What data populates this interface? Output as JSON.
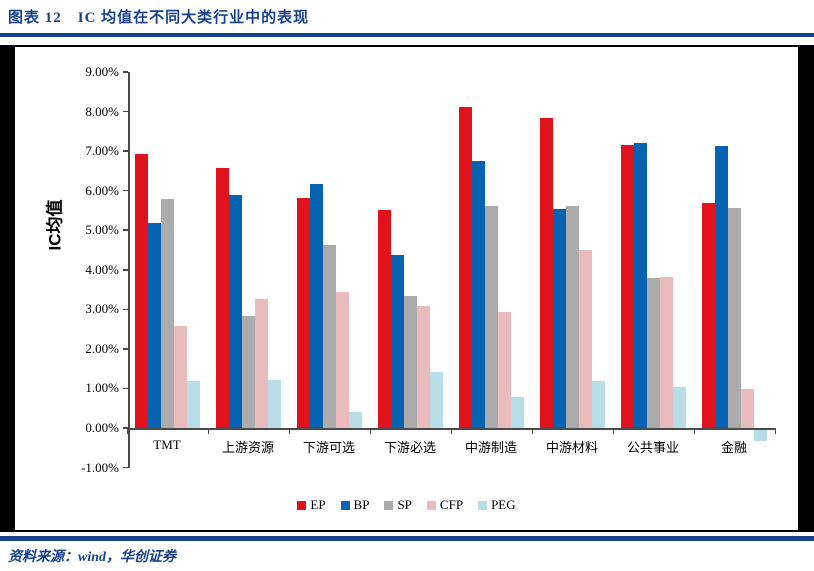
{
  "title": "图表 12　IC 均值在不同大类行业中的表现",
  "source": "资料来源：wind，华创证券",
  "colors": {
    "accent_navy": "#17418F",
    "frame_black": "#000000",
    "axis_gray": "#4a4a4a",
    "ep_red": "#E0131C",
    "bp_blue": "#0663B2",
    "sp_gray": "#ACACAC",
    "cfp_pink": "#EABBBD",
    "peg_lightblue": "#B7DEE8"
  },
  "chart_data": {
    "type": "bar",
    "title": "",
    "xlabel": "",
    "ylabel": "IC均值",
    "ylim": [
      -1,
      9
    ],
    "ytick_step": 1,
    "ytick_format": "0.00%",
    "grid": false,
    "legend_position": "bottom",
    "categories": [
      "TMT",
      "上游资源",
      "下游可选",
      "下游必选",
      "中游制造",
      "中游材料",
      "公共事业",
      "金融"
    ],
    "series": [
      {
        "name": "EP",
        "color": "#E0131C",
        "values": [
          6.93,
          6.58,
          5.81,
          5.5,
          8.11,
          7.84,
          7.15,
          5.7
        ]
      },
      {
        "name": "BP",
        "color": "#0663B2",
        "values": [
          5.18,
          5.9,
          6.17,
          4.38,
          6.74,
          5.53,
          7.21,
          7.12
        ]
      },
      {
        "name": "SP",
        "color": "#ACACAC",
        "values": [
          5.78,
          2.84,
          4.63,
          3.33,
          5.6,
          5.61,
          3.8,
          5.55
        ]
      },
      {
        "name": "CFP",
        "color": "#EABBBD",
        "values": [
          2.57,
          3.26,
          3.45,
          3.09,
          2.94,
          4.5,
          3.81,
          0.98
        ]
      },
      {
        "name": "PEG",
        "color": "#B7DEE8",
        "values": [
          1.19,
          1.21,
          0.4,
          1.41,
          0.78,
          1.19,
          1.03,
          -0.28
        ]
      }
    ]
  }
}
